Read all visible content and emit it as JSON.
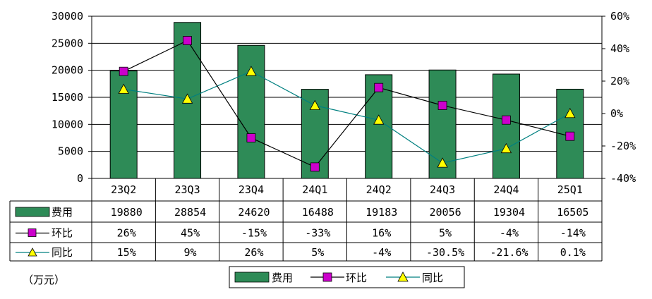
{
  "chart_data": {
    "type": "bar",
    "categories": [
      "23Q2",
      "23Q3",
      "23Q4",
      "24Q1",
      "24Q2",
      "24Q3",
      "24Q4",
      "25Q1"
    ],
    "series": [
      {
        "name": "费用",
        "kind": "bar",
        "axis": "left",
        "color": "#2e8b57",
        "values": [
          19880,
          28854,
          24620,
          16488,
          19183,
          20056,
          19304,
          16505
        ],
        "labels": [
          "19880",
          "28854",
          "24620",
          "16488",
          "19183",
          "20056",
          "19304",
          "16505"
        ]
      },
      {
        "name": "环比",
        "kind": "line",
        "axis": "right",
        "color": "#cc00cc",
        "line_color": "#000000",
        "marker": "square",
        "values": [
          26,
          45,
          -15,
          -33,
          16,
          5,
          -4,
          -14
        ],
        "labels": [
          "26%",
          "45%",
          "-15%",
          "-33%",
          "16%",
          "5%",
          "-4%",
          "-14%"
        ]
      },
      {
        "name": "同比",
        "kind": "line",
        "axis": "right",
        "color": "#ffff00",
        "line_color": "#008080",
        "marker": "triangle",
        "values": [
          15,
          9,
          26,
          5,
          -4,
          -30.5,
          -21.6,
          0.1
        ],
        "labels": [
          "15%",
          "9%",
          "26%",
          "5%",
          "-4%",
          "-30.5%",
          "-21.6%",
          "0.1%"
        ]
      }
    ],
    "left_axis": {
      "min": 0,
      "max": 30000,
      "ticks": [
        0,
        5000,
        10000,
        15000,
        20000,
        25000,
        30000
      ],
      "tick_labels": [
        "0",
        "5000",
        "10000",
        "15000",
        "20000",
        "25000",
        "30000"
      ]
    },
    "right_axis": {
      "min": -40,
      "max": 60,
      "ticks": [
        -40,
        -20,
        0,
        20,
        40,
        60
      ],
      "tick_labels": [
        "-40%",
        "-20%",
        "0%",
        "20%",
        "40%",
        "60%"
      ]
    },
    "unit_note": "（万元）",
    "grid": "horizontal",
    "data_table": true,
    "legend_position": "bottom-center"
  }
}
